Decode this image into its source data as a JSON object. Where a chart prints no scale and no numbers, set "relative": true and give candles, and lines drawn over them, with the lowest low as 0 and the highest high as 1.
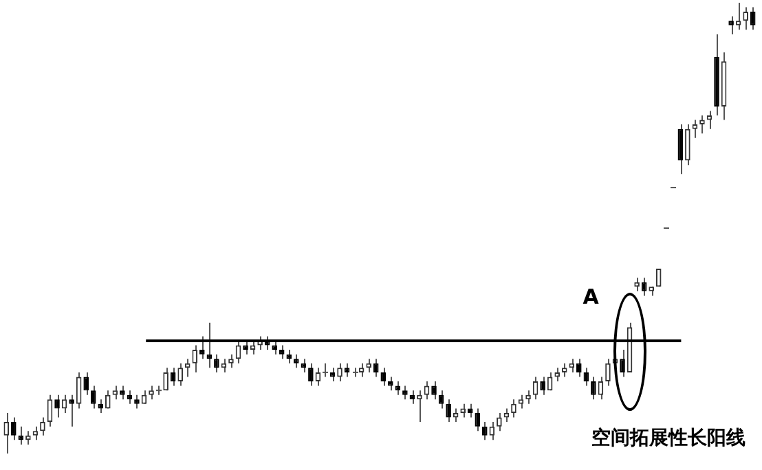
{
  "chart_data": {
    "type": "candlestick",
    "relative": true,
    "categories": [
      null,
      null,
      null,
      null,
      null,
      null,
      null,
      null,
      null,
      null,
      null,
      null,
      null,
      null,
      null,
      null,
      null,
      null,
      null,
      null,
      null,
      null,
      null,
      null,
      null,
      null,
      null,
      null,
      null,
      null,
      null,
      null,
      null,
      null,
      null,
      null,
      null,
      null,
      null,
      null,
      null,
      null,
      null,
      null,
      null,
      null,
      null,
      null,
      null,
      null,
      null,
      null,
      null,
      null,
      null,
      null,
      null,
      null,
      null,
      null,
      null,
      null,
      null,
      null,
      null,
      null,
      null,
      null,
      null,
      null,
      null,
      null,
      null,
      null,
      null,
      null,
      null,
      null,
      null,
      null,
      null,
      null,
      null,
      null,
      null,
      null,
      null,
      null,
      null,
      null,
      null,
      null,
      null,
      null,
      null,
      null,
      null,
      null,
      null,
      null,
      null,
      null,
      null,
      null
    ],
    "ohlc": [
      [
        0.04,
        0.09,
        0,
        0.07
      ],
      [
        0.07,
        0.08,
        0.03,
        0.04
      ],
      [
        0.04,
        0.06,
        0.02,
        0.03
      ],
      [
        0.03,
        0.05,
        0.02,
        0.04
      ],
      [
        0.04,
        0.06,
        0.03,
        0.05
      ],
      [
        0.05,
        0.08,
        0.04,
        0.07
      ],
      [
        0.07,
        0.13,
        0.06,
        0.12
      ],
      [
        0.12,
        0.13,
        0.08,
        0.1
      ],
      [
        0.1,
        0.13,
        0.09,
        0.12
      ],
      [
        0.12,
        0.13,
        0.06,
        0.11
      ],
      [
        0.11,
        0.18,
        0.1,
        0.17
      ],
      [
        0.17,
        0.18,
        0.13,
        0.14
      ],
      [
        0.14,
        0.15,
        0.1,
        0.11
      ],
      [
        0.11,
        0.12,
        0.09,
        0.1
      ],
      [
        0.1,
        0.14,
        0.1,
        0.13
      ],
      [
        0.13,
        0.15,
        0.12,
        0.14
      ],
      [
        0.14,
        0.15,
        0.12,
        0.13
      ],
      [
        0.13,
        0.14,
        0.11,
        0.12
      ],
      [
        0.12,
        0.13,
        0.1,
        0.11
      ],
      [
        0.11,
        0.14,
        0.11,
        0.13
      ],
      [
        0.13,
        0.15,
        0.12,
        0.14
      ],
      [
        0.14,
        0.15,
        0.13,
        0.14
      ],
      [
        0.14,
        0.19,
        0.14,
        0.18
      ],
      [
        0.18,
        0.19,
        0.15,
        0.16
      ],
      [
        0.16,
        0.2,
        0.15,
        0.19
      ],
      [
        0.19,
        0.21,
        0.17,
        0.2
      ],
      [
        0.2,
        0.24,
        0.18,
        0.23
      ],
      [
        0.23,
        0.26,
        0.21,
        0.22
      ],
      [
        0.22,
        0.29,
        0.19,
        0.21
      ],
      [
        0.21,
        0.22,
        0.18,
        0.19
      ],
      [
        0.19,
        0.21,
        0.18,
        0.2
      ],
      [
        0.2,
        0.22,
        0.19,
        0.21
      ],
      [
        0.21,
        0.25,
        0.2,
        0.24
      ],
      [
        0.24,
        0.25,
        0.22,
        0.23
      ],
      [
        0.23,
        0.25,
        0.22,
        0.24
      ],
      [
        0.24,
        0.26,
        0.23,
        0.25
      ],
      [
        0.25,
        0.26,
        0.23,
        0.24
      ],
      [
        0.24,
        0.25,
        0.22,
        0.23
      ],
      [
        0.23,
        0.24,
        0.21,
        0.22
      ],
      [
        0.22,
        0.23,
        0.2,
        0.21
      ],
      [
        0.21,
        0.22,
        0.19,
        0.2
      ],
      [
        0.2,
        0.21,
        0.18,
        0.19
      ],
      [
        0.19,
        0.2,
        0.15,
        0.16
      ],
      [
        0.16,
        0.19,
        0.15,
        0.18
      ],
      [
        0.18,
        0.2,
        0.17,
        0.18
      ],
      [
        0.18,
        0.19,
        0.16,
        0.17
      ],
      [
        0.17,
        0.2,
        0.16,
        0.19
      ],
      [
        0.19,
        0.2,
        0.17,
        0.18
      ],
      [
        0.18,
        0.19,
        0.17,
        0.18
      ],
      [
        0.18,
        0.2,
        0.17,
        0.19
      ],
      [
        0.19,
        0.21,
        0.18,
        0.2
      ],
      [
        0.2,
        0.21,
        0.17,
        0.18
      ],
      [
        0.18,
        0.19,
        0.15,
        0.16
      ],
      [
        0.16,
        0.17,
        0.14,
        0.15
      ],
      [
        0.15,
        0.16,
        0.13,
        0.14
      ],
      [
        0.14,
        0.15,
        0.12,
        0.13
      ],
      [
        0.13,
        0.14,
        0.11,
        0.12
      ],
      [
        0.12,
        0.14,
        0.07,
        0.13
      ],
      [
        0.13,
        0.16,
        0.12,
        0.15
      ],
      [
        0.15,
        0.16,
        0.12,
        0.13
      ],
      [
        0.13,
        0.14,
        0.1,
        0.11
      ],
      [
        0.11,
        0.12,
        0.07,
        0.08
      ],
      [
        0.08,
        0.1,
        0.07,
        0.09
      ],
      [
        0.09,
        0.11,
        0.08,
        0.1
      ],
      [
        0.1,
        0.11,
        0.08,
        0.09
      ],
      [
        0.09,
        0.1,
        0.05,
        0.06
      ],
      [
        0.06,
        0.07,
        0.03,
        0.04
      ],
      [
        0.04,
        0.07,
        0.03,
        0.06
      ],
      [
        0.06,
        0.09,
        0.05,
        0.08
      ],
      [
        0.08,
        0.1,
        0.07,
        0.09
      ],
      [
        0.09,
        0.12,
        0.08,
        0.11
      ],
      [
        0.11,
        0.13,
        0.1,
        0.12
      ],
      [
        0.12,
        0.14,
        0.11,
        0.13
      ],
      [
        0.13,
        0.17,
        0.12,
        0.16
      ],
      [
        0.16,
        0.17,
        0.13,
        0.14
      ],
      [
        0.14,
        0.18,
        0.14,
        0.17
      ],
      [
        0.17,
        0.19,
        0.16,
        0.18
      ],
      [
        0.18,
        0.2,
        0.17,
        0.19
      ],
      [
        0.19,
        0.21,
        0.18,
        0.2
      ],
      [
        0.2,
        0.21,
        0.17,
        0.18
      ],
      [
        0.18,
        0.19,
        0.15,
        0.16
      ],
      [
        0.16,
        0.17,
        0.12,
        0.13
      ],
      [
        0.13,
        0.17,
        0.12,
        0.16
      ],
      [
        0.16,
        0.21,
        0.15,
        0.2
      ],
      [
        0.2,
        0.22,
        0.19,
        0.21
      ],
      [
        0.21,
        0.23,
        0.17,
        0.18
      ],
      [
        0.18,
        0.29,
        0.18,
        0.28
      ],
      [
        0.37,
        0.39,
        0.36,
        0.38
      ],
      [
        0.38,
        0.39,
        0.35,
        0.36
      ],
      [
        0.36,
        0.37,
        0.35,
        0.37
      ],
      [
        0.37,
        0.41,
        0.37,
        0.41
      ],
      [
        0.5,
        0.5,
        0.5,
        0.5
      ],
      [
        0.59,
        0.59,
        0.59,
        0.59
      ],
      [
        0.72,
        0.73,
        0.62,
        0.65
      ],
      [
        0.65,
        0.73,
        0.64,
        0.72
      ],
      [
        0.72,
        0.74,
        0.7,
        0.73
      ],
      [
        0.73,
        0.75,
        0.71,
        0.74
      ],
      [
        0.74,
        0.76,
        0.72,
        0.75
      ],
      [
        0.88,
        0.93,
        0.75,
        0.77
      ],
      [
        0.77,
        0.89,
        0.74,
        0.87
      ],
      [
        0.96,
        0.97,
        0.93,
        0.95
      ],
      [
        0.95,
        1,
        0.94,
        0.96
      ],
      [
        0.96,
        0.99,
        0.94,
        0.98
      ],
      [
        0.98,
        0.99,
        0.94,
        0.95
      ]
    ],
    "ref_lines": [
      {
        "axis": "y",
        "value": 0.25,
        "color": "#000000"
      }
    ],
    "annotations": [
      "A",
      "空间拓展性长阳线"
    ]
  }
}
